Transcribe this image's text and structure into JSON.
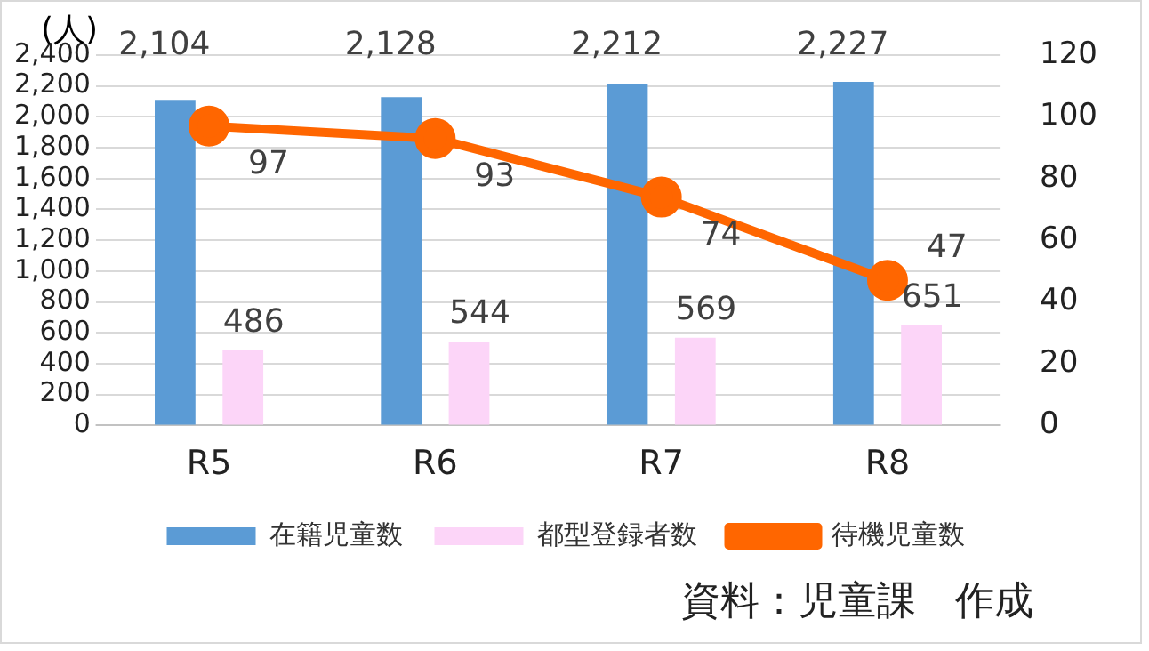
{
  "chart_data": {
    "type": "bar",
    "ylabel": "(人)",
    "categories": [
      "R5",
      "R6",
      "R7",
      "R8"
    ],
    "series": [
      {
        "name": "在籍児童数",
        "color": "#5b9bd5",
        "values": [
          2104,
          2128,
          2212,
          2227
        ],
        "value_labels": [
          "2,104",
          "2,128",
          "2,212",
          "2,227"
        ]
      },
      {
        "name": "都型登録者数",
        "color": "#fcd5f8",
        "values": [
          486,
          544,
          569,
          651
        ],
        "value_labels": [
          "486",
          "544",
          "569",
          "651"
        ]
      },
      {
        "name": "待機児童数",
        "type": "line",
        "axis": "y2",
        "color": "#ff6600",
        "values": [
          97,
          93,
          74,
          47
        ],
        "value_labels": [
          "97",
          "93",
          "74",
          "47"
        ]
      }
    ],
    "ylim": [
      0,
      2400
    ],
    "yticks": [
      0,
      200,
      400,
      600,
      800,
      {
        "value": 1000,
        "label": "1,000"
      },
      {
        "value": 1200,
        "label": "1,200"
      },
      {
        "value": 1400,
        "label": "1,400"
      },
      {
        "value": 1600,
        "label": "1,600"
      },
      {
        "value": 1800,
        "label": "1,800"
      },
      {
        "value": 2000,
        "label": "2,000"
      },
      {
        "value": 2200,
        "label": "2,200"
      },
      {
        "value": 2400,
        "label": "2,400"
      }
    ],
    "y2lim": [
      0,
      120
    ],
    "y2ticks": [
      0,
      20,
      40,
      60,
      80,
      100,
      120
    ],
    "grid": "y",
    "legend": "bottom",
    "marker": "circle",
    "annotations": [
      "資料：児童課　作成"
    ]
  }
}
